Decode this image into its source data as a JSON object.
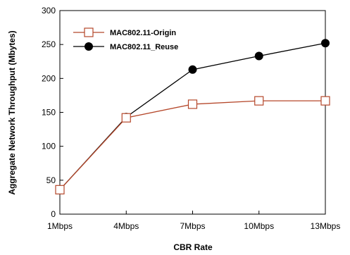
{
  "chart_data": {
    "type": "line",
    "xlabel": "CBR Rate",
    "ylabel": "Aggregate Network Throughput (Mbytes)",
    "categories": [
      "1Mbps",
      "4Mbps",
      "7Mbps",
      "10Mbps",
      "13Mbps"
    ],
    "ylim": [
      0,
      300
    ],
    "yticks": [
      "0",
      "50",
      "100",
      "150",
      "200",
      "250",
      "300"
    ],
    "grid": false,
    "legend_position": "top-left",
    "series": [
      {
        "name": "MAC802.11-Origin",
        "values": [
          36,
          142,
          162,
          167,
          167
        ],
        "color": "#b5472a",
        "marker": "open-square"
      },
      {
        "name": "MAC802.11_Reuse",
        "values": [
          36,
          143,
          213,
          233,
          252
        ],
        "color": "#000000",
        "marker": "filled-circle"
      }
    ]
  }
}
